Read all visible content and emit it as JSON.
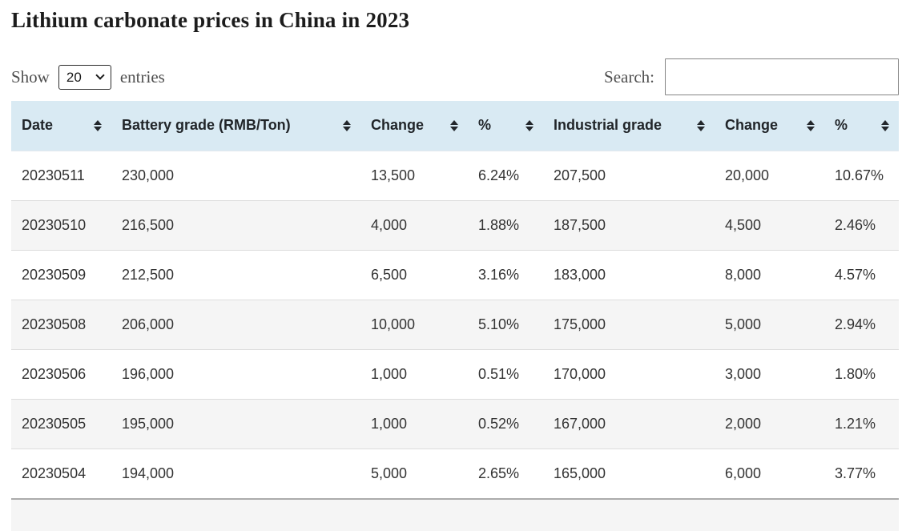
{
  "page": {
    "title": "Lithium carbonate prices in China in 2023"
  },
  "controls": {
    "show_label": "Show",
    "page_length": "20",
    "entries_label": "entries",
    "search_label": "Search:",
    "search_value": ""
  },
  "table": {
    "columns": [
      {
        "key": "date",
        "label": "Date"
      },
      {
        "key": "battery-grade",
        "label": "Battery grade (RMB/Ton)"
      },
      {
        "key": "battery-change",
        "label": "Change"
      },
      {
        "key": "battery-percent",
        "label": "%"
      },
      {
        "key": "industrial-grade",
        "label": "Industrial grade"
      },
      {
        "key": "industrial-change",
        "label": "Change"
      },
      {
        "key": "industrial-percent",
        "label": "%"
      }
    ],
    "rows": [
      [
        "20230511",
        "230,000",
        "13,500",
        "6.24%",
        "207,500",
        "20,000",
        "10.67%"
      ],
      [
        "20230510",
        "216,500",
        "4,000",
        "1.88%",
        "187,500",
        "4,500",
        "2.46%"
      ],
      [
        "20230509",
        "212,500",
        "6,500",
        "3.16%",
        "183,000",
        "8,000",
        "4.57%"
      ],
      [
        "20230508",
        "206,000",
        "10,000",
        "5.10%",
        "175,000",
        "5,000",
        "2.94%"
      ],
      [
        "20230506",
        "196,000",
        "1,000",
        "0.51%",
        "170,000",
        "3,000",
        "1.80%"
      ],
      [
        "20230505",
        "195,000",
        "1,000",
        "0.52%",
        "167,000",
        "2,000",
        "1.21%"
      ],
      [
        "20230504",
        "194,000",
        "5,000",
        "2.65%",
        "165,000",
        "6,000",
        "3.77%"
      ]
    ]
  },
  "colors": {
    "header_bg": "#d9eaf3",
    "stripe_bg": "#f5f5f5",
    "row_divider": "#dddddd",
    "bottom_divider": "#ababab",
    "header_text": "#212529",
    "body_text": "#333333"
  }
}
